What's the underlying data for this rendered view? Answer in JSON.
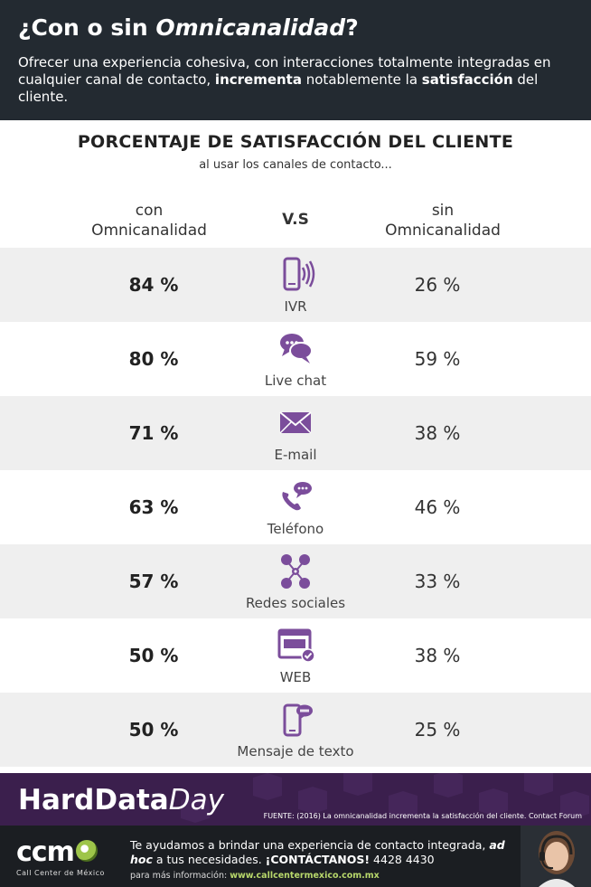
{
  "header": {
    "title_prefix": "¿Con o sin ",
    "title_em": "Omnicanalidad",
    "title_suffix": "?",
    "desc_part1": "Ofrecer una experiencia cohesiva, con interacciones totalmente integradas en cualquier canal de contacto, ",
    "desc_bold1": "incrementa",
    "desc_part2": " notablemente la ",
    "desc_bold2": "satisfacción",
    "desc_part3": " del cliente."
  },
  "section": {
    "title": "PORCENTAJE DE SATISFACCIÓN DEL CLIENTE",
    "subtitle": "al usar los canales de contacto..."
  },
  "columns": {
    "left_line1": "con",
    "left_line2": "Omnicanalidad",
    "middle": "V.S",
    "right_line1": "sin",
    "right_line2": "Omnicanalidad"
  },
  "rows": [
    {
      "con": "84 %",
      "channel": "IVR",
      "icon": "mobile-ivr-icon",
      "sin": "26 %"
    },
    {
      "con": "80 %",
      "channel": "Live chat",
      "icon": "chat-bubbles-icon",
      "sin": "59 %"
    },
    {
      "con": "71 %",
      "channel": "E-mail",
      "icon": "envelope-icon",
      "sin": "38 %"
    },
    {
      "con": "63 %",
      "channel": "Teléfono",
      "icon": "phone-chat-icon",
      "sin": "46 %"
    },
    {
      "con": "57 %",
      "channel": "Redes sociales",
      "icon": "social-network-icon",
      "sin": "33 %"
    },
    {
      "con": "50 %",
      "channel": "WEB",
      "icon": "web-browser-icon",
      "sin": "38 %"
    },
    {
      "con": "50 %",
      "channel": "Mensaje de texto",
      "icon": "sms-phone-icon",
      "sin": "25 %"
    }
  ],
  "banner": {
    "brand_bold": "HardData",
    "brand_italic": "Day",
    "source": "FUENTE: (2016) La omnicanalidad incrementa la satisfacción del cliente. Contact Forum"
  },
  "footer": {
    "logo": "ccm",
    "logo_sub": "Call Center de México",
    "cta_part1": "Te ayudamos a brindar una experiencia de contacto integrada, ",
    "cta_em": "ad hoc",
    "cta_part2": " a tus necesidades. ",
    "cta_bold": "¡CONTÁCTANOS!",
    "phone": " 4428 4430",
    "more_label": "para más información: ",
    "url": "www.callcentermexico.com.mx"
  },
  "colors": {
    "accent_purple": "#7b4d9b",
    "header_bg": "#232a31",
    "banner_bg": "#3b1f4d",
    "footer_bg": "#1b1e22",
    "row_alt_bg": "#efefef"
  }
}
